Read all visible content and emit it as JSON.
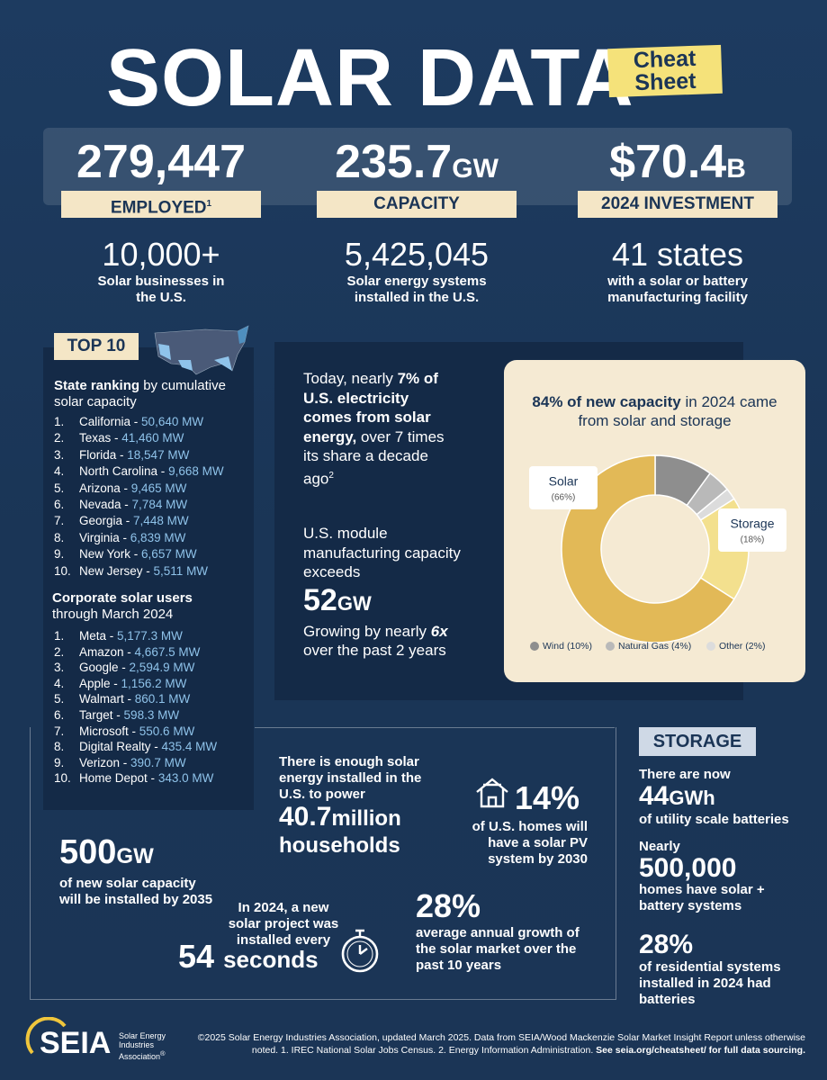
{
  "header": {
    "title": "SOLAR DATA",
    "badge_line1": "Cheat",
    "badge_line2": "Sheet"
  },
  "stats": [
    {
      "value": "279,447",
      "label": "EMPLOYED",
      "note": "1"
    },
    {
      "value": "235.7",
      "unit": "GW",
      "label": "CAPACITY"
    },
    {
      "value": "$70.4",
      "unit": "B",
      "label": "2024 INVESTMENT"
    }
  ],
  "facts": [
    {
      "value": "10,000+",
      "text": "Solar businesses in the U.S."
    },
    {
      "value": "5,425,045",
      "text": "Solar energy systems installed in the U.S."
    },
    {
      "value": "41 states",
      "text": "with a solar or battery manufacturing facility"
    }
  ],
  "top10": {
    "badge": "TOP 10",
    "states_heading_bold": "State ranking",
    "states_heading": " by cumulative solar capacity",
    "states": [
      {
        "rank": "1.",
        "name": "California -",
        "value": "50,640 MW"
      },
      {
        "rank": "2.",
        "name": "Texas -",
        "value": "41,460 MW"
      },
      {
        "rank": "3.",
        "name": "Florida -",
        "value": "18,547 MW"
      },
      {
        "rank": "4.",
        "name": "North Carolina -",
        "value": "9,668 MW"
      },
      {
        "rank": "5.",
        "name": "Arizona -",
        "value": "9,465 MW"
      },
      {
        "rank": "6.",
        "name": "Nevada -",
        "value": "7,784 MW"
      },
      {
        "rank": "7.",
        "name": "Georgia -",
        "value": "7,448 MW"
      },
      {
        "rank": "8.",
        "name": "Virginia -",
        "value": "6,839 MW"
      },
      {
        "rank": "9.",
        "name": "New York -",
        "value": "6,657 MW"
      },
      {
        "rank": "10.",
        "name": "New Jersey -",
        "value": "5,511 MW"
      }
    ],
    "corporate_heading_bold": "Corporate solar users",
    "corporate_heading": "through March 2024",
    "corporate": [
      {
        "rank": "1.",
        "name": "Meta -",
        "value": "5,177.3 MW"
      },
      {
        "rank": "2.",
        "name": "Amazon -",
        "value": "4,667.5 MW"
      },
      {
        "rank": "3.",
        "name": "Google -",
        "value": "2,594.9 MW"
      },
      {
        "rank": "4.",
        "name": "Apple -",
        "value": "1,156.2 MW"
      },
      {
        "rank": "5.",
        "name": "Walmart -",
        "value": "860.1 MW"
      },
      {
        "rank": "6.",
        "name": "Target -",
        "value": "598.3 MW"
      },
      {
        "rank": "7.",
        "name": "Microsoft -",
        "value": "550.6 MW"
      },
      {
        "rank": "8.",
        "name": "Digital Realty -",
        "value": "435.4 MW"
      },
      {
        "rank": "9.",
        "name": "Verizon -",
        "value": "390.7 MW"
      },
      {
        "rank": "10.",
        "name": "Home Depot -",
        "value": "343.0 MW"
      }
    ]
  },
  "electricity": {
    "intro": "Today, nearly ",
    "bold": "7% of U.S. electricity comes from solar energy,",
    "rest": " over 7 times its share a decade ago",
    "note": "2"
  },
  "manufacturing": {
    "intro": "U.S. module manufacturing capacity exceeds",
    "value": "52",
    "unit": "GW",
    "growth_a": "Growing by nearly ",
    "growth_b": "6x",
    "growth_c": " over the past 2 years"
  },
  "chart_data": {
    "type": "donut",
    "title_bold": "84% of new capacity",
    "title": " in 2024 came from solar and storage",
    "categories": [
      "Wind",
      "Natural Gas",
      "Other",
      "Storage",
      "Solar"
    ],
    "values": [
      10,
      4,
      2,
      18,
      66
    ],
    "value_labels": [
      "(10%)",
      "(4%)",
      "(2%)",
      "(18%)",
      "(66%)"
    ],
    "colors": [
      "#8e8e8e",
      "#b9b9b9",
      "#dcdcdc",
      "#f3e08e",
      "#e2b957"
    ]
  },
  "households": {
    "intro": "There is enough solar energy installed in the U.S. to power",
    "value": "40.7",
    "unit": "million",
    "text": "households"
  },
  "homes": {
    "value": "14%",
    "text": "of U.S. homes will have a solar PV system by 2030"
  },
  "new_capacity": {
    "value": "500",
    "unit": "GW",
    "text": "of new solar capacity will be installed by 2035"
  },
  "project": {
    "intro": "In 2024, a new solar project was installed every",
    "value": "54",
    "unit": "seconds"
  },
  "growth": {
    "value": "28%",
    "text": "average annual growth of the solar market over the past 10 years"
  },
  "storage": {
    "badge": "STORAGE",
    "a_intro": "There are now",
    "a_value": "44",
    "a_unit": "GWh",
    "a_text": "of utility scale batteries",
    "b_intro": "Nearly",
    "b_value": "500,000",
    "b_text": "homes have solar + battery systems",
    "c_value": "28%",
    "c_text": "of residential systems installed in 2024 had batteries"
  },
  "footer": {
    "logo": "SEIA",
    "org": "Solar Energy Industries Association",
    "mark": "®",
    "text": "©2025 Solar Energy Industries Association, updated March 2025. Data from SEIA/Wood Mackenzie Solar Market Insight Report unless otherwise noted. 1. IREC National Solar Jobs Census. 2. Energy Information Administration. ",
    "link": "See seia.org/cheatsheet/ for full data sourcing."
  }
}
